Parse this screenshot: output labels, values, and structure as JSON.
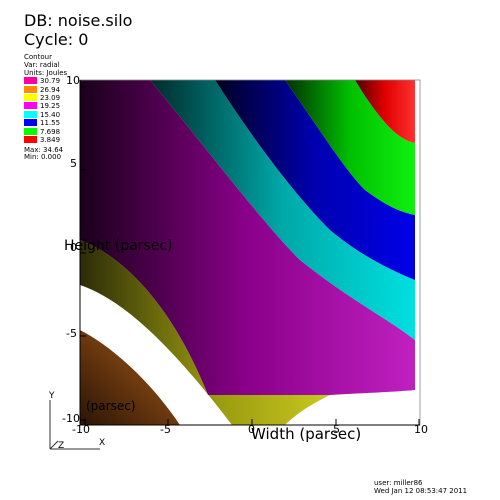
{
  "header": {
    "db_label": "DB: noise.silo",
    "cycle_label": "Cycle: 0"
  },
  "legend": {
    "title": "Contour",
    "var": "Var: radial",
    "units": "Units: Joules",
    "entries": [
      {
        "value": "30.79",
        "color": "#ff00a0"
      },
      {
        "value": "26.94",
        "color": "#ff8c00"
      },
      {
        "value": "23.09",
        "color": "#ffff00"
      },
      {
        "value": "19.25",
        "color": "#ff00ff"
      },
      {
        "value": "15.40",
        "color": "#00ffff"
      },
      {
        "value": "11.55",
        "color": "#0000ff"
      },
      {
        "value": "7.698",
        "color": "#00ff00"
      },
      {
        "value": "3.849",
        "color": "#ff0000"
      }
    ],
    "max": "Max: 34.64",
    "min": "Min: 0.000"
  },
  "axes": {
    "x_title": "Width (parsec)",
    "y_title": "Height (parsec)",
    "z_title": "(parsec)",
    "x_ticks": [
      "-10",
      "-5",
      "0",
      "5",
      "10"
    ],
    "y_ticks": [
      "10",
      "5",
      "0",
      "-5",
      "-10"
    ],
    "triad_y": "Y",
    "triad_x": "X",
    "triad_z": "Z"
  },
  "footer": {
    "user": "user: miller86",
    "date": "Wed Jan 12 08:53:47 2011"
  },
  "colors": {
    "red": "#ff1010",
    "green": "#00e000",
    "blue": "#0000c8",
    "cyan": "#00c8c8",
    "magenta": "#a000a0",
    "olive": "#a0a000",
    "brown": "#7a4010"
  }
}
